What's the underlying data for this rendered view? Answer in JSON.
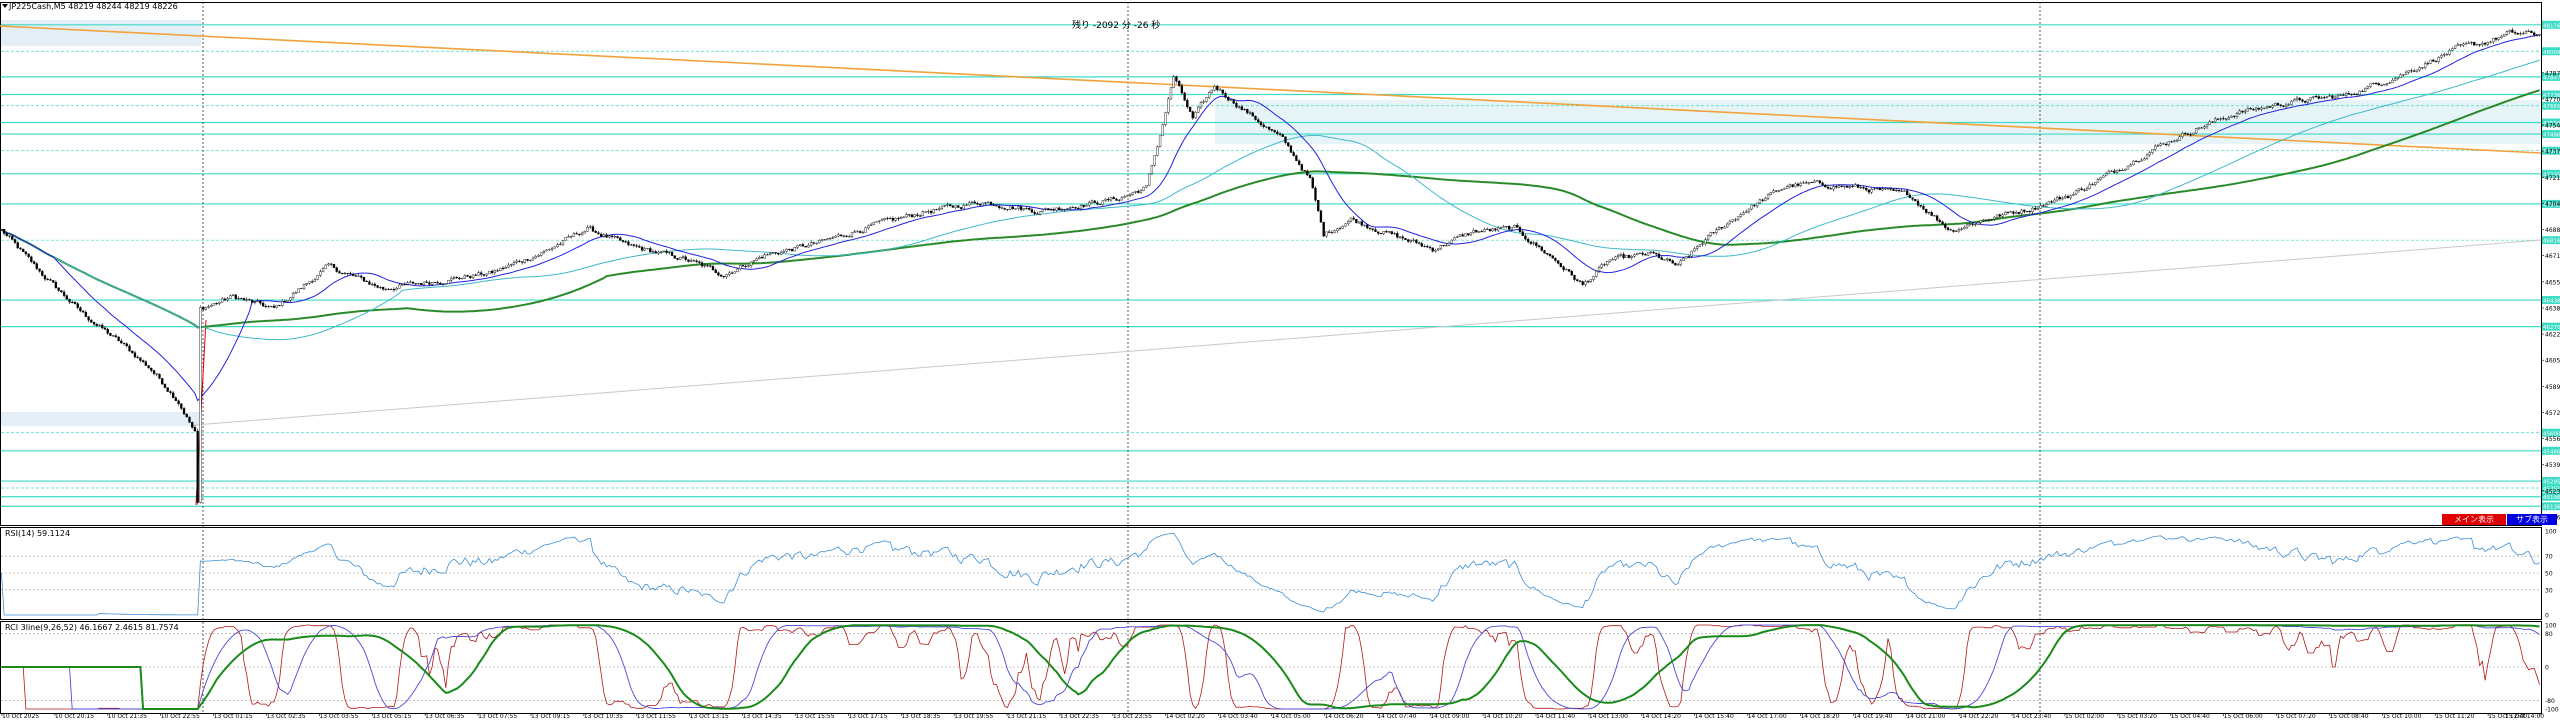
{
  "main_panel": {
    "symbol_header": "JP225Cash,M5  48219 48244 48219 48226",
    "countdown": "残り -2092 分 -26 秒",
    "buttons": {
      "main_label": "メイン表示",
      "sub_label": "サブ表示"
    }
  },
  "rsi_panel": {
    "header": "RSI(14) 59.1124"
  },
  "rci_panel": {
    "header": "RCI 3line(9,26,52) 46.1667 2.4615 81.7574"
  },
  "colors": {
    "candle": "#000000",
    "bull": "#ffffff",
    "ma_short": "#2222dd",
    "ma_mid": "#3fb9c8",
    "ma_long": "#2a8a2a",
    "trend_orange": "#f2a23a",
    "trend_gray": "#c8c8c8",
    "level_line": "#3ddbc6",
    "rsi_line": "#3c8fd6",
    "rci_short": "#b01818",
    "rci_mid": "#4a4ad8",
    "rci_long": "#1a8a1a",
    "red_segment": "#e00000",
    "btn_main": "#e00000",
    "btn_sub": "#0000e0"
  },
  "chart_data": [
    {
      "type": "candlestick",
      "title": "JP225Cash,M5  48219 48244 48219 48226",
      "series": [
        {
          "name": "",
          "kind": "price"
        },
        {
          "name": "",
          "kind": "ma"
        },
        {
          "name": "",
          "kind": "ma"
        },
        {
          "name": "",
          "kind": "ma"
        }
      ],
      "y_ticks": [
        "47873",
        "47708",
        "47543",
        "47378",
        "47213",
        "47048",
        "46883",
        "46718",
        "46553",
        "46388",
        "46223",
        "46058",
        "45893",
        "45728",
        "45563",
        "45398",
        "45233",
        "45068"
      ],
      "y_range": [
        45068,
        48320
      ],
      "level_tags": [
        "48176",
        "48009",
        "47847",
        "47736",
        "47665",
        "47559",
        "47486",
        "47381",
        "47235",
        "47045",
        "46816",
        "46438",
        "46270",
        "45600",
        "45486",
        "45295",
        "45251",
        "45196",
        "45136"
      ],
      "x_ticks": [
        "10 Oct 2025",
        "10 Oct 20:15",
        "10 Oct 21:35",
        "10 Oct 22:55",
        "13 Oct 01:15",
        "13 Oct 02:35",
        "13 Oct 03:55",
        "13 Oct 05:15",
        "13 Oct 06:35",
        "13 Oct 07:55",
        "13 Oct 09:15",
        "13 Oct 10:35",
        "13 Oct 11:55",
        "13 Oct 13:15",
        "13 Oct 14:35",
        "13 Oct 15:55",
        "13 Oct 17:15",
        "13 Oct 18:35",
        "13 Oct 19:55",
        "13 Oct 21:15",
        "13 Oct 22:35",
        "13 Oct 23:55",
        "14 Oct 02:20",
        "14 Oct 03:40",
        "14 Oct 05:00",
        "14 Oct 06:20",
        "14 Oct 07:40",
        "14 Oct 09:00",
        "14 Oct 10:20",
        "14 Oct 11:40",
        "14 Oct 13:00",
        "14 Oct 14:20",
        "14 Oct 15:40",
        "14 Oct 17:00",
        "14 Oct 18:20",
        "14 Oct 19:40",
        "14 Oct 21:00",
        "14 Oct 22:20",
        "14 Oct 23:40",
        "15 Oct 02:00",
        "15 Oct 03:20",
        "15 Oct 04:40",
        "15 Oct 06:00",
        "15 Oct 07:20",
        "15 Oct 08:40",
        "15 Oct 10:00",
        "15 Oct 11:20",
        "15 Oct 12:40",
        "15 Oct 14:00"
      ],
      "path_anchors": [
        [
          0,
          46880
        ],
        [
          15,
          46600
        ],
        [
          30,
          46350
        ],
        [
          45,
          46150
        ],
        [
          55,
          46000
        ],
        [
          65,
          45800
        ],
        [
          71,
          45600
        ],
        [
          72,
          45150
        ],
        [
          73,
          46380
        ],
        [
          85,
          46460
        ],
        [
          100,
          46380
        ],
        [
          120,
          46650
        ],
        [
          140,
          46510
        ],
        [
          160,
          46560
        ],
        [
          180,
          46610
        ],
        [
          200,
          46750
        ],
        [
          215,
          46890
        ],
        [
          230,
          46780
        ],
        [
          250,
          46700
        ],
        [
          265,
          46600
        ],
        [
          280,
          46720
        ],
        [
          300,
          46800
        ],
        [
          320,
          46910
        ],
        [
          340,
          47000
        ],
        [
          360,
          47060
        ],
        [
          380,
          47000
        ],
        [
          400,
          47050
        ],
        [
          410,
          47080
        ],
        [
          420,
          47150
        ],
        [
          425,
          47480
        ],
        [
          430,
          47850
        ],
        [
          437,
          47580
        ],
        [
          445,
          47790
        ],
        [
          455,
          47650
        ],
        [
          470,
          47450
        ],
        [
          480,
          47200
        ],
        [
          485,
          46850
        ],
        [
          495,
          46950
        ],
        [
          510,
          46850
        ],
        [
          525,
          46760
        ],
        [
          540,
          46870
        ],
        [
          555,
          46890
        ],
        [
          570,
          46690
        ],
        [
          580,
          46530
        ],
        [
          590,
          46690
        ],
        [
          605,
          46730
        ],
        [
          615,
          46650
        ],
        [
          625,
          46820
        ],
        [
          640,
          47010
        ],
        [
          655,
          47160
        ],
        [
          665,
          47170
        ],
        [
          680,
          47150
        ],
        [
          700,
          47100
        ],
        [
          710,
          46950
        ],
        [
          715,
          46880
        ],
        [
          730,
          46960
        ],
        [
          745,
          47020
        ],
        [
          760,
          47110
        ],
        [
          775,
          47250
        ],
        [
          790,
          47400
        ],
        [
          805,
          47520
        ],
        [
          820,
          47620
        ],
        [
          840,
          47690
        ],
        [
          860,
          47730
        ],
        [
          880,
          47860
        ],
        [
          900,
          48020
        ],
        [
          910,
          48060
        ],
        [
          920,
          48120
        ],
        [
          932,
          48115
        ]
      ]
    },
    {
      "type": "line",
      "title": "RSI(14) 59.1124",
      "series": [
        {
          "name": "",
          "values_desc": "oscillates 35-75"
        }
      ],
      "y_ticks": [
        "100",
        "70",
        "50",
        "30",
        "0"
      ],
      "ylim": [
        0,
        100
      ]
    },
    {
      "type": "line",
      "title": "RCI 3line(9,26,52) 46.1667 2.4615 81.7574",
      "series": [
        {
          "name": "",
          "last": 46.1667
        },
        {
          "name": "",
          "last": 2.4615
        },
        {
          "name": "",
          "last": 81.7574
        }
      ],
      "y_ticks": [
        "100",
        "80",
        "0",
        "-80",
        "-100"
      ],
      "ylim": [
        -100,
        100
      ]
    }
  ]
}
